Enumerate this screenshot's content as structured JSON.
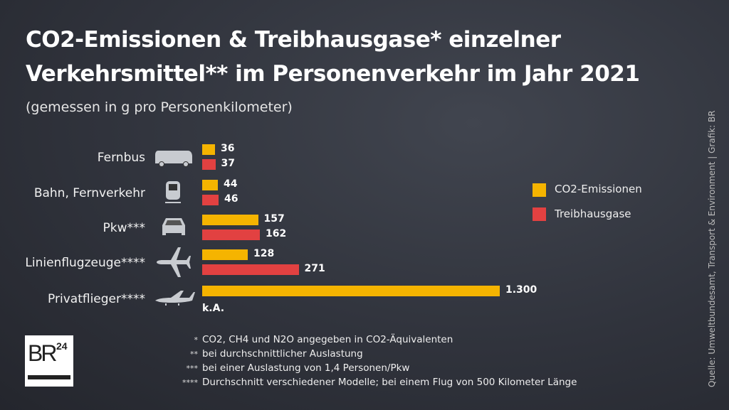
{
  "title_lines": [
    "CO2-Emissionen & Treibhausgase* einzelner",
    "Verkehrsmittel** im Personenverkehr im Jahr 2021"
  ],
  "subtitle": "(gemessen in g pro Personenkilometer)",
  "chart_data": {
    "type": "bar",
    "orientation": "horizontal",
    "categories": [
      "Fernbus",
      "Bahn, Fernverkehr",
      "Pkw***",
      "Linienflugzeuge****",
      "Privatflieger****"
    ],
    "icons": [
      "bus-icon",
      "train-icon",
      "car-icon",
      "airliner-icon",
      "private-jet-icon"
    ],
    "series": [
      {
        "name": "CO2-Emissionen",
        "color": "#f5b400",
        "values": [
          36,
          44,
          157,
          128,
          1300
        ],
        "labels": [
          "36",
          "44",
          "157",
          "128",
          "1.300"
        ]
      },
      {
        "name": "Treibhausgase",
        "color": "#e24141",
        "values": [
          37,
          46,
          162,
          271,
          null
        ],
        "labels": [
          "37",
          "46",
          "162",
          "271",
          "k.A."
        ]
      }
    ],
    "legend": "right"
  },
  "footnotes": [
    {
      "mark": "*",
      "text": "CO2, CH4 und N2O angegeben in CO2-Äquivalenten"
    },
    {
      "mark": "**",
      "text": "bei durchschnittlicher Auslastung"
    },
    {
      "mark": "***",
      "text": "bei einer Auslastung von 1,4 Personen/Pkw"
    },
    {
      "mark": "****",
      "text": "Durchschnitt verschiedener Modelle; bei einem Flug von 500 Kilometer Länge"
    }
  ],
  "source": "Quelle: Umweltbundesamt, Transport & Environment | Grafik: BR",
  "logo": "BR24"
}
